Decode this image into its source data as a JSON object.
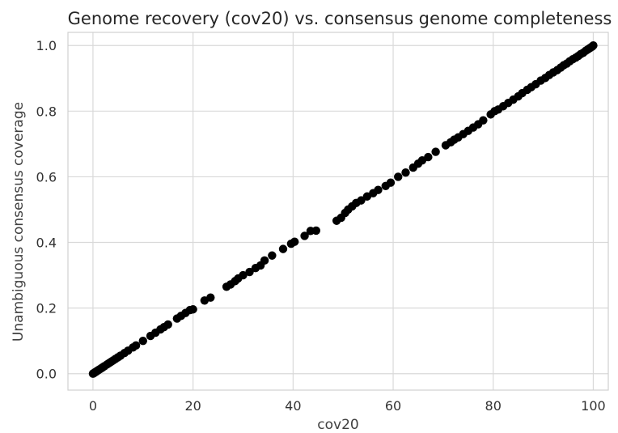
{
  "chart_data": {
    "type": "scatter",
    "title": "Genome recovery (cov20) vs. consensus genome completeness",
    "xlabel": "cov20",
    "ylabel": "Unambiguous consensus coverage",
    "xlim": [
      -5,
      103
    ],
    "ylim": [
      -0.05,
      1.04
    ],
    "xticks": [
      "0",
      "20",
      "40",
      "60",
      "80",
      "100"
    ],
    "yticks": [
      "0.0",
      "0.2",
      "0.4",
      "0.6",
      "0.8",
      "1.0"
    ],
    "grid": true,
    "marker_color": "#000000",
    "points": [
      [
        0.0,
        0.0
      ],
      [
        0.1,
        0.001
      ],
      [
        0.2,
        0.002
      ],
      [
        0.3,
        0.003
      ],
      [
        0.5,
        0.005
      ],
      [
        0.6,
        0.006
      ],
      [
        0.8,
        0.008
      ],
      [
        1.0,
        0.01
      ],
      [
        1.2,
        0.012
      ],
      [
        1.5,
        0.015
      ],
      [
        1.8,
        0.018
      ],
      [
        2.0,
        0.02
      ],
      [
        2.3,
        0.023
      ],
      [
        2.8,
        0.028
      ],
      [
        3.2,
        0.032
      ],
      [
        3.6,
        0.036
      ],
      [
        4.0,
        0.04
      ],
      [
        4.5,
        0.045
      ],
      [
        5.0,
        0.05
      ],
      [
        5.5,
        0.055
      ],
      [
        6.3,
        0.063
      ],
      [
        7.0,
        0.07
      ],
      [
        8.0,
        0.08
      ],
      [
        8.6,
        0.086
      ],
      [
        10.0,
        0.1
      ],
      [
        11.5,
        0.115
      ],
      [
        12.5,
        0.125
      ],
      [
        13.5,
        0.135
      ],
      [
        14.2,
        0.142
      ],
      [
        15.0,
        0.15
      ],
      [
        16.8,
        0.168
      ],
      [
        17.6,
        0.176
      ],
      [
        18.5,
        0.185
      ],
      [
        19.4,
        0.194
      ],
      [
        20.0,
        0.196
      ],
      [
        22.3,
        0.223
      ],
      [
        23.5,
        0.232
      ],
      [
        26.7,
        0.265
      ],
      [
        27.5,
        0.272
      ],
      [
        28.4,
        0.282
      ],
      [
        29.0,
        0.29
      ],
      [
        30.0,
        0.3
      ],
      [
        31.3,
        0.31
      ],
      [
        32.5,
        0.322
      ],
      [
        33.5,
        0.33
      ],
      [
        34.3,
        0.345
      ],
      [
        35.8,
        0.36
      ],
      [
        38.0,
        0.38
      ],
      [
        39.6,
        0.396
      ],
      [
        40.3,
        0.402
      ],
      [
        42.3,
        0.42
      ],
      [
        43.5,
        0.435
      ],
      [
        44.6,
        0.436
      ],
      [
        48.7,
        0.466
      ],
      [
        49.6,
        0.475
      ],
      [
        50.4,
        0.49
      ],
      [
        51.0,
        0.5
      ],
      [
        51.8,
        0.51
      ],
      [
        52.6,
        0.52
      ],
      [
        53.6,
        0.528
      ],
      [
        54.8,
        0.54
      ],
      [
        56.0,
        0.55
      ],
      [
        57.0,
        0.56
      ],
      [
        58.5,
        0.572
      ],
      [
        59.5,
        0.582
      ],
      [
        61.0,
        0.6
      ],
      [
        62.5,
        0.613
      ],
      [
        64.0,
        0.628
      ],
      [
        65.0,
        0.64
      ],
      [
        65.8,
        0.65
      ],
      [
        67.0,
        0.66
      ],
      [
        68.5,
        0.676
      ],
      [
        70.5,
        0.696
      ],
      [
        71.5,
        0.705
      ],
      [
        72.2,
        0.713
      ],
      [
        73.0,
        0.72
      ],
      [
        74.0,
        0.73
      ],
      [
        75.0,
        0.74
      ],
      [
        76.0,
        0.75
      ],
      [
        77.0,
        0.76
      ],
      [
        78.0,
        0.772
      ],
      [
        79.5,
        0.79
      ],
      [
        80.3,
        0.8
      ],
      [
        81.0,
        0.805
      ],
      [
        82.0,
        0.815
      ],
      [
        83.0,
        0.825
      ],
      [
        84.0,
        0.835
      ],
      [
        85.0,
        0.845
      ],
      [
        85.8,
        0.855
      ],
      [
        86.8,
        0.865
      ],
      [
        87.6,
        0.873
      ],
      [
        88.5,
        0.882
      ],
      [
        89.5,
        0.893
      ],
      [
        90.4,
        0.901
      ],
      [
        91.2,
        0.91
      ],
      [
        92.0,
        0.918
      ],
      [
        92.8,
        0.925
      ],
      [
        93.5,
        0.933
      ],
      [
        94.1,
        0.94
      ],
      [
        94.7,
        0.945
      ],
      [
        95.3,
        0.952
      ],
      [
        95.9,
        0.958
      ],
      [
        96.5,
        0.963
      ],
      [
        97.0,
        0.968
      ],
      [
        97.5,
        0.974
      ],
      [
        98.0,
        0.978
      ],
      [
        98.5,
        0.984
      ],
      [
        98.9,
        0.988
      ],
      [
        99.3,
        0.992
      ],
      [
        99.6,
        0.995
      ],
      [
        99.8,
        0.997
      ],
      [
        100.0,
        1.0
      ]
    ]
  }
}
